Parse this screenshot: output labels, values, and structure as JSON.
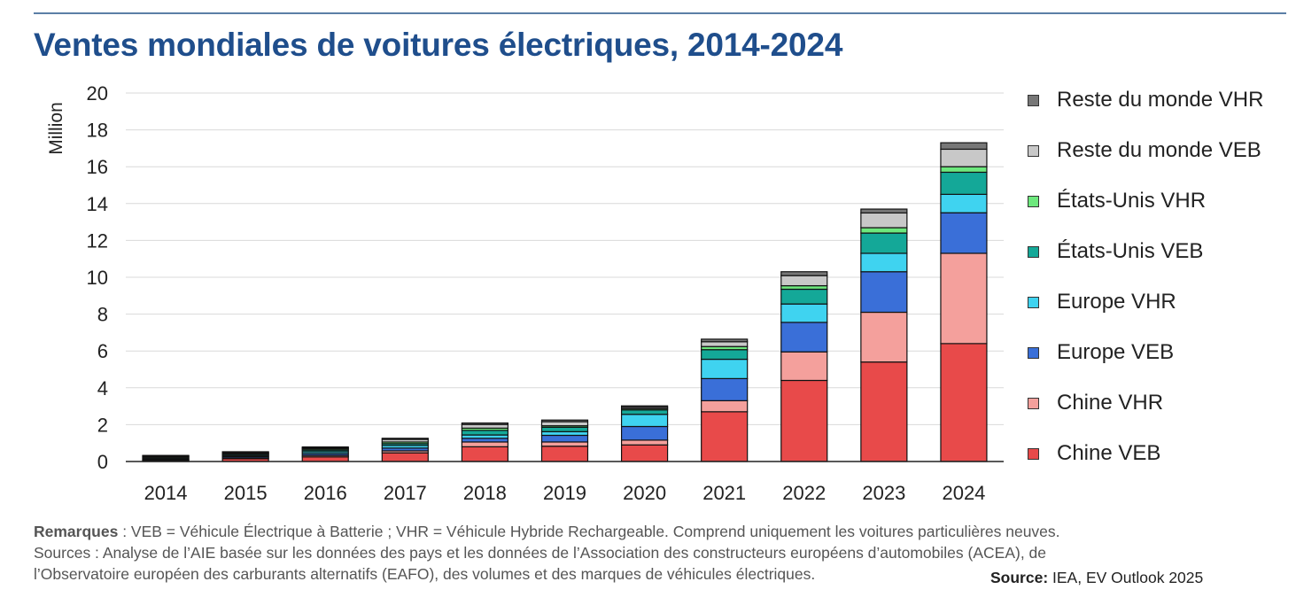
{
  "title": "Ventes mondiales de voitures électriques, 2014-2024",
  "notes": {
    "remarks_label": "Remarques",
    "remarks_text": " : VEB = Véhicule Électrique à Batterie ; VHR = Véhicule Hybride Rechargeable. Comprend uniquement les voitures particulières neuves.",
    "sources_line1": "Sources : Analyse de l’AIE basée sur les données des pays et les données de l’Association des constructeurs européens d’automobiles (ACEA), de",
    "sources_line2": "l’Observatoire européen des carburants alternatifs (EAFO), des volumes et des marques de véhicules électriques.",
    "source_label": "Source:",
    "source_text": " IEA, EV Outlook 2025"
  },
  "chart_data": {
    "type": "bar",
    "stacked": true,
    "title": "Ventes mondiales de voitures électriques, 2014-2024",
    "xlabel": "",
    "ylabel": "Million",
    "ylim": [
      0,
      20
    ],
    "yticks": [
      0,
      2,
      4,
      6,
      8,
      10,
      12,
      14,
      16,
      18,
      20
    ],
    "grid": true,
    "legend_position": "right",
    "categories": [
      "2014",
      "2015",
      "2016",
      "2017",
      "2018",
      "2019",
      "2020",
      "2021",
      "2022",
      "2023",
      "2024"
    ],
    "series": [
      {
        "name": "Chine VEB",
        "color": "#e84a4a",
        "values": [
          0.05,
          0.15,
          0.25,
          0.47,
          0.8,
          0.83,
          0.9,
          2.7,
          4.4,
          5.4,
          6.4
        ]
      },
      {
        "name": "Chine VHR",
        "color": "#f4a09c",
        "values": [
          0.02,
          0.05,
          0.08,
          0.11,
          0.26,
          0.23,
          0.26,
          0.6,
          1.55,
          2.7,
          4.9
        ]
      },
      {
        "name": "Europe VEB",
        "color": "#3a6fd8",
        "values": [
          0.04,
          0.07,
          0.1,
          0.15,
          0.2,
          0.36,
          0.74,
          1.2,
          1.6,
          2.2,
          2.2
        ]
      },
      {
        "name": "Europe VHR",
        "color": "#3fd3f0",
        "values": [
          0.04,
          0.06,
          0.1,
          0.14,
          0.18,
          0.2,
          0.66,
          1.05,
          1.0,
          1.0,
          1.0
        ]
      },
      {
        "name": "États-Unis VEB",
        "color": "#14a898",
        "values": [
          0.06,
          0.07,
          0.09,
          0.1,
          0.25,
          0.24,
          0.24,
          0.52,
          0.8,
          1.1,
          1.2
        ]
      },
      {
        "name": "États-Unis VHR",
        "color": "#6de87d",
        "values": [
          0.06,
          0.04,
          0.07,
          0.09,
          0.12,
          0.08,
          0.07,
          0.17,
          0.19,
          0.29,
          0.3
        ]
      },
      {
        "name": "Reste du monde VEB",
        "color": "#c8c8c8",
        "values": [
          0.03,
          0.05,
          0.05,
          0.14,
          0.2,
          0.22,
          0.08,
          0.26,
          0.55,
          0.8,
          0.95
        ]
      },
      {
        "name": "Reste du monde VHR",
        "color": "#777777",
        "values": [
          0.03,
          0.04,
          0.05,
          0.06,
          0.08,
          0.09,
          0.07,
          0.14,
          0.21,
          0.21,
          0.35
        ]
      }
    ]
  }
}
